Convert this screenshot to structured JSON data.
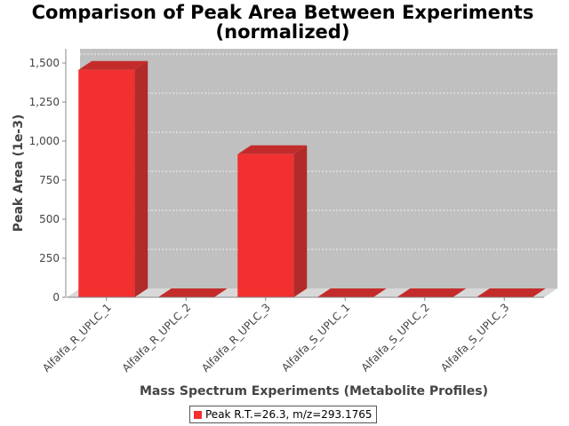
{
  "chart_data": {
    "type": "bar",
    "title": "Comparison of Peak Area Between Experiments",
    "subtitle": "(normalized)",
    "xlabel": "Mass Spectrum Experiments (Metabolite Profiles)",
    "ylabel": "Peak Area (1e-3)",
    "categories": [
      "Alfalfa_R_UPLC_1",
      "Alfalfa_R_UPLC_2",
      "Alfalfa_R_UPLC_3",
      "Alfalfa_S_UPLC_1",
      "Alfalfa_S_UPLC_2",
      "Alfalfa_S_UPLC_3"
    ],
    "series": [
      {
        "name": "Peak R.T.=26.3, m/z=293.1765",
        "values": [
          1456,
          0,
          916,
          0,
          0,
          0
        ],
        "color": "#f23030"
      }
    ],
    "ylim": [
      0,
      1500
    ],
    "yticks": [
      0,
      250,
      500,
      750,
      1000,
      1250,
      1500
    ],
    "ytick_labels": [
      "0",
      "250",
      "500",
      "750",
      "1,000",
      "1,250",
      "1,500"
    ],
    "grid": true,
    "style": "3d",
    "plot_background": "#c0c0c0",
    "legend_position": "bottom"
  }
}
